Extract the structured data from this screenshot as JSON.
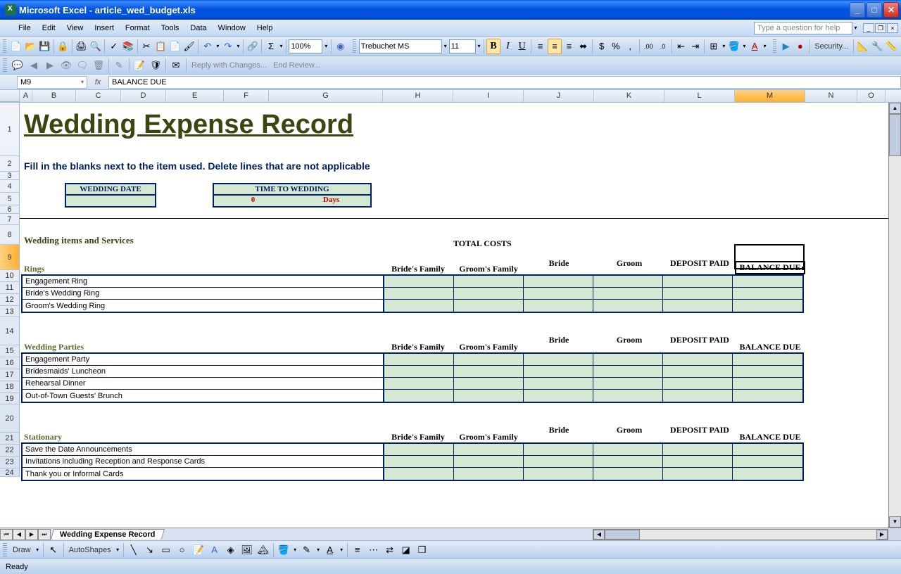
{
  "app": {
    "title": "Microsoft Excel - article_wed_budget.xls"
  },
  "menus": [
    "File",
    "Edit",
    "View",
    "Insert",
    "Format",
    "Tools",
    "Data",
    "Window",
    "Help"
  ],
  "help_placeholder": "Type a question for help",
  "toolbar": {
    "font": "Trebuchet MS",
    "size": "11",
    "zoom": "100%",
    "security": "Security..."
  },
  "review": {
    "reply": "Reply with Changes...",
    "end": "End Review..."
  },
  "formula": {
    "cell": "M9",
    "value": "BALANCE DUE"
  },
  "columns": [
    "A",
    "B",
    "C",
    "D",
    "E",
    "F",
    "G",
    "H",
    "I",
    "J",
    "K",
    "L",
    "M",
    "N",
    "O"
  ],
  "col_widths": {
    "A": 18,
    "B": 62,
    "C": 64,
    "D": 64,
    "E": 82,
    "F": 64,
    "G": 162,
    "H": 100,
    "I": 100,
    "J": 100,
    "K": 100,
    "L": 100,
    "M": 100,
    "N": 74,
    "O": 40
  },
  "selected_col": "M",
  "selected_row": 9,
  "rows": [
    {
      "n": 1,
      "h": 76
    },
    {
      "n": 2,
      "h": 22
    },
    {
      "n": 3,
      "h": 12
    },
    {
      "n": 4,
      "h": 18
    },
    {
      "n": 5,
      "h": 18
    },
    {
      "n": 6,
      "h": 12
    },
    {
      "n": 7,
      "h": 16
    },
    {
      "n": 8,
      "h": 28
    },
    {
      "n": 9,
      "h": 36
    },
    {
      "n": 10,
      "h": 17
    },
    {
      "n": 11,
      "h": 17
    },
    {
      "n": 12,
      "h": 17
    },
    {
      "n": 13,
      "h": 16
    },
    {
      "n": 14,
      "h": 40
    },
    {
      "n": 15,
      "h": 17
    },
    {
      "n": 16,
      "h": 17
    },
    {
      "n": 17,
      "h": 17
    },
    {
      "n": 18,
      "h": 17
    },
    {
      "n": 19,
      "h": 16
    },
    {
      "n": 20,
      "h": 40
    },
    {
      "n": 21,
      "h": 17
    },
    {
      "n": 22,
      "h": 17
    },
    {
      "n": 23,
      "h": 17
    },
    {
      "n": 24,
      "h": 12
    }
  ],
  "sheet": {
    "title": "Wedding Expense Record",
    "instructions": "Fill in the blanks next to the item used.  Delete lines that are not applicable",
    "wedding_date_label": "WEDDING DATE",
    "time_to_wedding_label": "TIME TO WEDDING",
    "time_value": "0",
    "time_unit": "Days",
    "section_header": "Wedding items and Services",
    "total_costs": "TOTAL COSTS",
    "col_headers": {
      "brides_family": "Bride's Family",
      "grooms_family": "Groom's Family",
      "bride": "Bride",
      "groom": "Groom",
      "deposit": "DEPOSIT PAID",
      "balance": "BALANCE DUE"
    },
    "sections": [
      {
        "name": "Rings",
        "items": [
          "Engagement Ring",
          "Bride's Wedding Ring",
          "Groom's Wedding Ring"
        ]
      },
      {
        "name": "Wedding Parties",
        "items": [
          "Engagement Party",
          "Bridesmaids' Luncheon",
          "Rehearsal Dinner",
          "Out-of-Town Guests' Brunch"
        ]
      },
      {
        "name": "Stationary",
        "items": [
          "Save the Date Announcements",
          "Invitations including Reception and Response Cards",
          "Thank you or Informal Cards"
        ]
      }
    ]
  },
  "sheet_tab": "Wedding Expense Record",
  "draw_label": "Draw",
  "autoshapes": "AutoShapes",
  "status": "Ready",
  "colors": {
    "title": "#3a4510",
    "instruction": "#002060",
    "box_border": "#002060",
    "box_bg": "#d4e8d4",
    "red_text": "#c00000",
    "section": "#556b2f",
    "olive": "#3a4510"
  }
}
